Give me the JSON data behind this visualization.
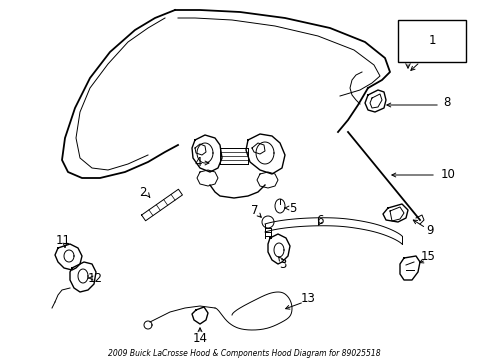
{
  "title": "2009 Buick LaCrosse Hood & Components Hood Diagram for 89025518",
  "bg": "#ffffff",
  "lc": "#000000",
  "fig_w": 4.89,
  "fig_h": 3.6,
  "dpi": 100
}
